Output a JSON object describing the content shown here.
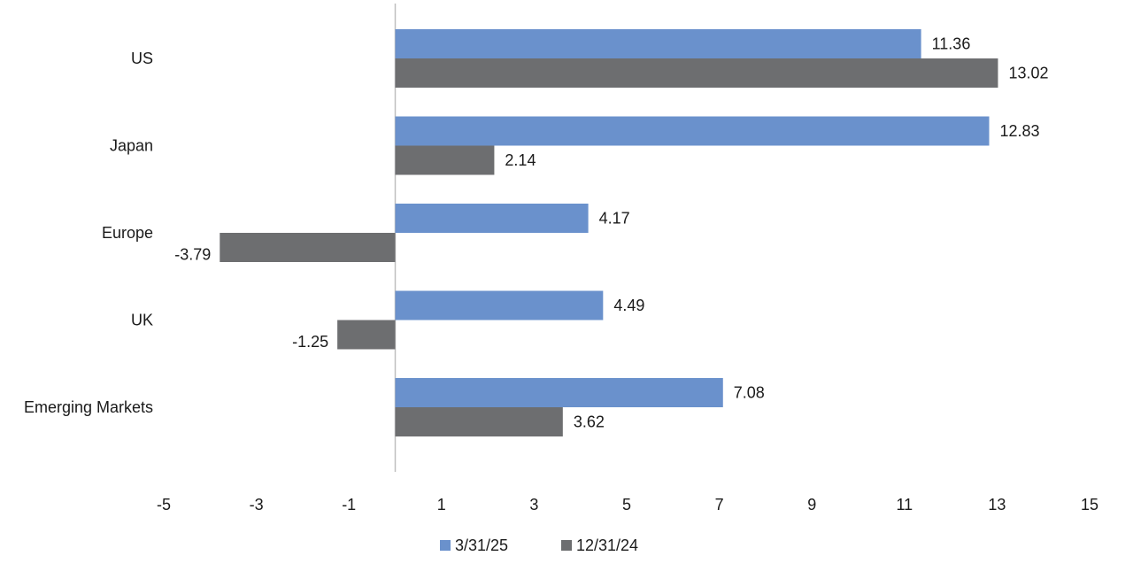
{
  "chart_data": {
    "type": "bar",
    "orientation": "horizontal",
    "title": "",
    "xlabel": "",
    "ylabel": "",
    "categories": [
      "US",
      "Japan",
      "Europe",
      "UK",
      "Emerging Markets"
    ],
    "series": [
      {
        "name": "3/31/25",
        "color": "#6a91cc",
        "values": [
          11.36,
          12.83,
          4.17,
          4.49,
          7.08
        ],
        "labels": [
          "11.36",
          "12.83",
          "4.17",
          "4.49",
          "7.08"
        ]
      },
      {
        "name": "12/31/24",
        "color": "#6d6e70",
        "values": [
          13.02,
          2.14,
          -3.79,
          -1.25,
          3.62
        ],
        "labels": [
          "13.02",
          "2.14",
          "-3.79",
          "-1.25",
          "3.62"
        ]
      }
    ],
    "xlim": [
      -5,
      15
    ],
    "xticks": [
      -5,
      -3,
      -1,
      1,
      3,
      5,
      7,
      9,
      11,
      13,
      15
    ],
    "xtick_labels": [
      "-5",
      "-3",
      "-1",
      "1",
      "3",
      "5",
      "7",
      "9",
      "11",
      "13",
      "15"
    ],
    "grid": false,
    "legend_position": "bottom",
    "zero_line_color": "#bfbfbf"
  }
}
